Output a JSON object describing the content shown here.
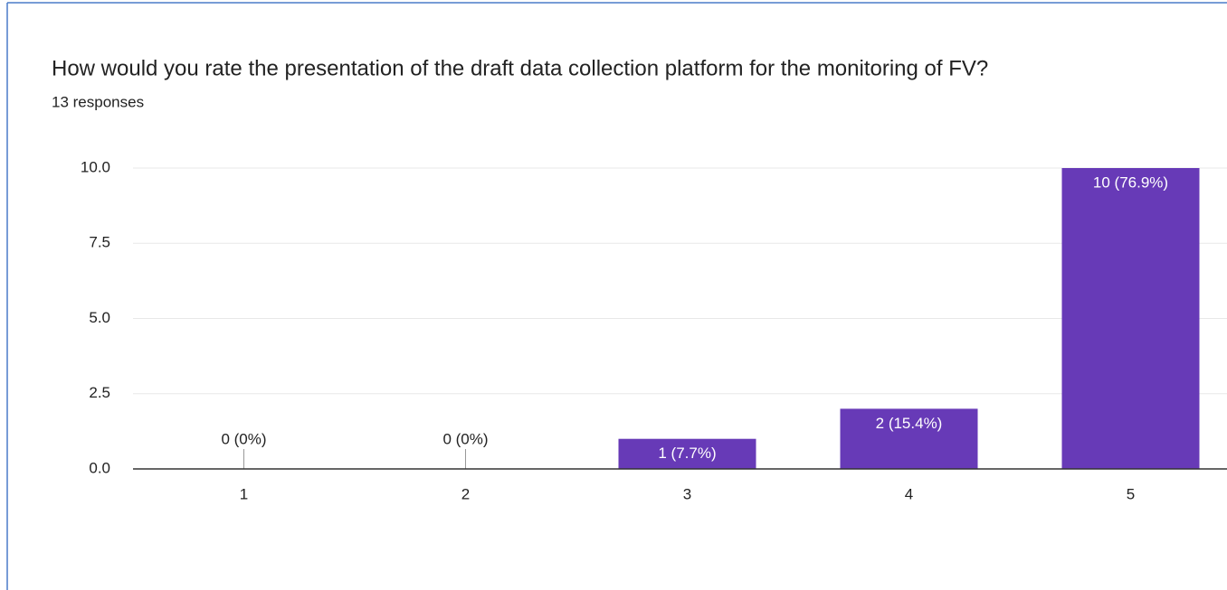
{
  "chart_data": {
    "type": "bar",
    "title": "How would you rate the presentation of the draft data collection platform for the monitoring of FV?",
    "subtitle": "13 responses",
    "categories": [
      "1",
      "2",
      "3",
      "4",
      "5"
    ],
    "values": [
      0,
      0,
      1,
      2,
      10
    ],
    "value_labels": [
      "0 (0%)",
      "0 (0%)",
      "1 (7.7%)",
      "2 (15.4%)",
      "10 (76.9%)"
    ],
    "color": "#673ab7",
    "ylim": [
      0,
      10
    ],
    "yticks": [
      {
        "value": 0,
        "label": "0.0"
      },
      2.5,
      {
        "value": 5,
        "label": "5.0"
      },
      7.5,
      {
        "value": 10,
        "label": "10.0"
      }
    ],
    "grid": true
  }
}
